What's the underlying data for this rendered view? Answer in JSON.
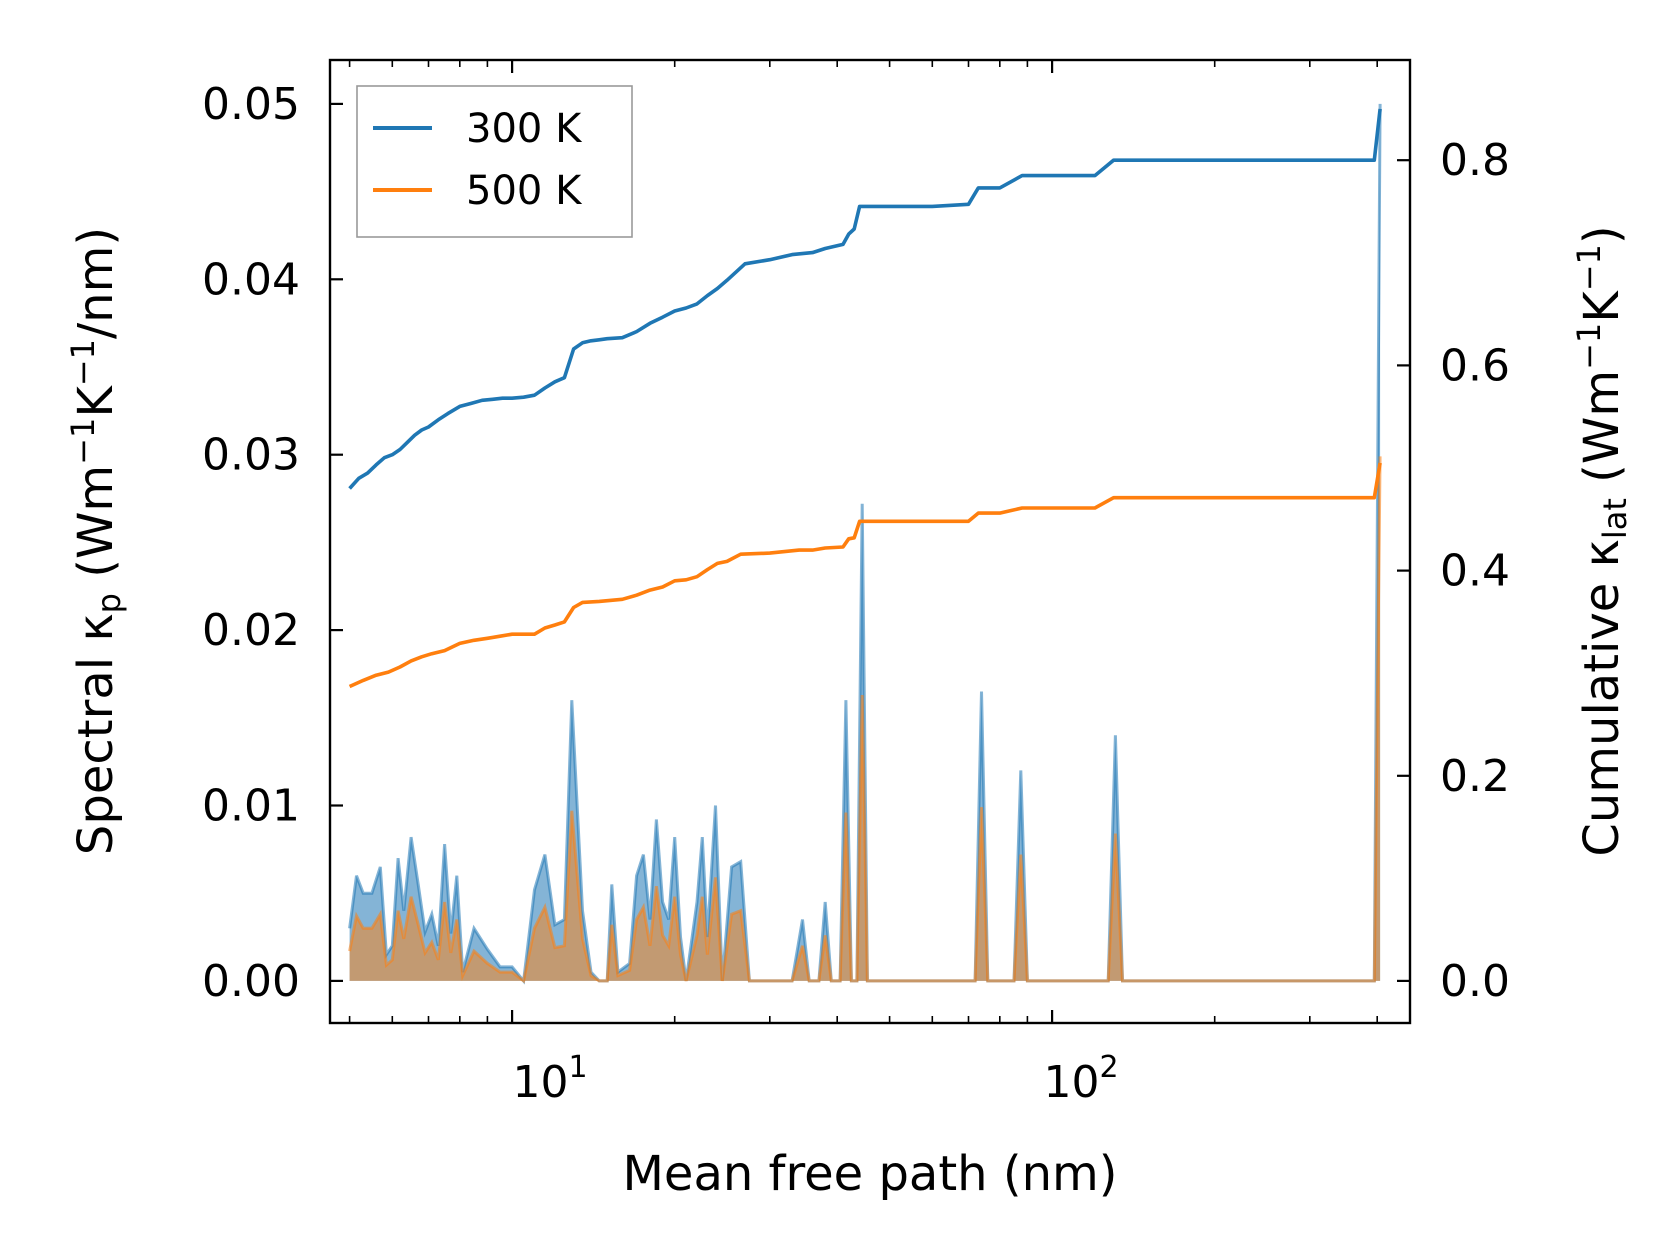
{
  "chart_data": {
    "type": "line",
    "xscale": "log",
    "xlabel": "Mean free path (nm)",
    "xlim": [
      4.6,
      460
    ],
    "xticks": [
      {
        "value": 10,
        "base": "10",
        "exp": "1"
      },
      {
        "value": 100,
        "base": "10",
        "exp": "2"
      }
    ],
    "y_left": {
      "label": {
        "main": "Spectral κ",
        "sub": "p",
        "units_pre": " (Wm",
        "sup1": "−1",
        "mid": "K",
        "sup2": "−1",
        "units_post": "/nm)"
      },
      "ylim": [
        -0.0024,
        0.0525
      ],
      "ticks": [
        0.0,
        0.01,
        0.02,
        0.03,
        0.04,
        0.05
      ],
      "tick_labels": [
        "0.00",
        "0.01",
        "0.02",
        "0.03",
        "0.04",
        "0.05"
      ]
    },
    "y_right": {
      "label": {
        "main": "Cumulative κ",
        "sub": "lat",
        "units_pre": " (Wm",
        "sup1": "−1",
        "mid": "K",
        "sup2": "−1",
        "units_post": ")"
      },
      "ylim": [
        -0.041,
        0.8977
      ],
      "ticks": [
        0.0,
        0.2,
        0.4,
        0.6,
        0.8
      ],
      "tick_labels": [
        "0.0",
        "0.2",
        "0.4",
        "0.6",
        "0.8"
      ]
    },
    "legend": {
      "position": "top-left",
      "entries": [
        {
          "label": "300 K",
          "color": "#1f77b4"
        },
        {
          "label": "500 K",
          "color": "#ff7f0e"
        }
      ]
    },
    "series": [
      {
        "name": "300 K",
        "color": "#1f77b4",
        "cumulative": [
          [
            5,
            0.48
          ],
          [
            5.2,
            0.49
          ],
          [
            5.4,
            0.495
          ],
          [
            5.6,
            0.503
          ],
          [
            5.8,
            0.51
          ],
          [
            6.0,
            0.513
          ],
          [
            6.2,
            0.518
          ],
          [
            6.4,
            0.525
          ],
          [
            6.6,
            0.532
          ],
          [
            6.8,
            0.537
          ],
          [
            7.0,
            0.54
          ],
          [
            7.3,
            0.547
          ],
          [
            7.6,
            0.553
          ],
          [
            8.0,
            0.56
          ],
          [
            8.4,
            0.563
          ],
          [
            8.8,
            0.566
          ],
          [
            9.2,
            0.567
          ],
          [
            9.6,
            0.568
          ],
          [
            10.0,
            0.568
          ],
          [
            10.5,
            0.569
          ],
          [
            11.0,
            0.571
          ],
          [
            11.5,
            0.578
          ],
          [
            12.0,
            0.584
          ],
          [
            12.5,
            0.588
          ],
          [
            13.0,
            0.616
          ],
          [
            13.5,
            0.622
          ],
          [
            14.0,
            0.624
          ],
          [
            14.5,
            0.625
          ],
          [
            15.0,
            0.626
          ],
          [
            16.0,
            0.627
          ],
          [
            17.0,
            0.633
          ],
          [
            18.0,
            0.641
          ],
          [
            19.0,
            0.647
          ],
          [
            20.0,
            0.653
          ],
          [
            21.0,
            0.656
          ],
          [
            22.0,
            0.66
          ],
          [
            23.0,
            0.668
          ],
          [
            24.0,
            0.675
          ],
          [
            25.0,
            0.683
          ],
          [
            27.0,
            0.699
          ],
          [
            30.0,
            0.703
          ],
          [
            33.0,
            0.708
          ],
          [
            36.0,
            0.71
          ],
          [
            38.0,
            0.714
          ],
          [
            41.0,
            0.718
          ],
          [
            42.0,
            0.728
          ],
          [
            43.0,
            0.733
          ],
          [
            44.0,
            0.755
          ],
          [
            50.0,
            0.755
          ],
          [
            60.0,
            0.755
          ],
          [
            70.0,
            0.757
          ],
          [
            73.0,
            0.773
          ],
          [
            80.0,
            0.773
          ],
          [
            88.0,
            0.785
          ],
          [
            100.0,
            0.785
          ],
          [
            120.0,
            0.785
          ],
          [
            130.0,
            0.8
          ],
          [
            150.0,
            0.8
          ],
          [
            200.0,
            0.8
          ],
          [
            300.0,
            0.8
          ],
          [
            395.0,
            0.8
          ],
          [
            405.0,
            0.85
          ]
        ],
        "spectral": [
          [
            5,
            0.003
          ],
          [
            5.15,
            0.006
          ],
          [
            5.3,
            0.005
          ],
          [
            5.5,
            0.005
          ],
          [
            5.7,
            0.0065
          ],
          [
            5.85,
            0.0015
          ],
          [
            6.0,
            0.002
          ],
          [
            6.15,
            0.007
          ],
          [
            6.3,
            0.004
          ],
          [
            6.5,
            0.0082
          ],
          [
            6.7,
            0.0055
          ],
          [
            6.9,
            0.0028
          ],
          [
            7.1,
            0.0038
          ],
          [
            7.3,
            0.002
          ],
          [
            7.5,
            0.0078
          ],
          [
            7.7,
            0.0027
          ],
          [
            7.9,
            0.006
          ],
          [
            8.1,
            0.0005
          ],
          [
            8.5,
            0.003
          ],
          [
            9.0,
            0.0018
          ],
          [
            9.5,
            0.0008
          ],
          [
            10.0,
            0.0008
          ],
          [
            10.5,
            0.0
          ],
          [
            11.0,
            0.0052
          ],
          [
            11.5,
            0.0072
          ],
          [
            12.0,
            0.0032
          ],
          [
            12.5,
            0.0035
          ],
          [
            12.9,
            0.016
          ],
          [
            13.5,
            0.004
          ],
          [
            14.0,
            0.0005
          ],
          [
            14.5,
            0.0
          ],
          [
            15.0,
            0.0
          ],
          [
            15.3,
            0.0055
          ],
          [
            15.7,
            0.0005
          ],
          [
            16.5,
            0.001
          ],
          [
            17.0,
            0.006
          ],
          [
            17.5,
            0.0072
          ],
          [
            18.0,
            0.0035
          ],
          [
            18.5,
            0.0092
          ],
          [
            19.0,
            0.0045
          ],
          [
            19.5,
            0.0035
          ],
          [
            20.0,
            0.0082
          ],
          [
            20.5,
            0.0025
          ],
          [
            21.0,
            0.0
          ],
          [
            22.0,
            0.0045
          ],
          [
            22.5,
            0.0082
          ],
          [
            23.0,
            0.0025
          ],
          [
            23.8,
            0.01
          ],
          [
            24.5,
            0.0
          ],
          [
            25.5,
            0.0065
          ],
          [
            26.5,
            0.0068
          ],
          [
            27.5,
            0.0
          ],
          [
            30.0,
            0.0
          ],
          [
            33.0,
            0.0
          ],
          [
            34.5,
            0.0035
          ],
          [
            35.5,
            0.0
          ],
          [
            37.0,
            0.0
          ],
          [
            38.0,
            0.0045
          ],
          [
            39.0,
            0.0
          ],
          [
            40.5,
            0.0
          ],
          [
            41.5,
            0.016
          ],
          [
            42.5,
            0.0
          ],
          [
            43.5,
            0.0
          ],
          [
            44.5,
            0.0272
          ],
          [
            45.5,
            0.0
          ],
          [
            50.0,
            0.0
          ],
          [
            60.0,
            0.0
          ],
          [
            70.0,
            0.0
          ],
          [
            72.0,
            0.0
          ],
          [
            74.0,
            0.0165
          ],
          [
            76.0,
            0.0
          ],
          [
            85.0,
            0.0
          ],
          [
            87.5,
            0.012
          ],
          [
            90.0,
            0.0
          ],
          [
            120.0,
            0.0
          ],
          [
            127.0,
            0.0
          ],
          [
            131.0,
            0.014
          ],
          [
            135.0,
            0.0
          ],
          [
            200.0,
            0.0
          ],
          [
            300.0,
            0.0
          ],
          [
            395.0,
            0.0
          ],
          [
            405.0,
            0.05
          ]
        ]
      },
      {
        "name": "500 K",
        "color": "#ff7f0e",
        "cumulative": [
          [
            5,
            0.287
          ],
          [
            5.3,
            0.293
          ],
          [
            5.6,
            0.298
          ],
          [
            5.9,
            0.301
          ],
          [
            6.2,
            0.306
          ],
          [
            6.5,
            0.312
          ],
          [
            6.8,
            0.316
          ],
          [
            7.1,
            0.319
          ],
          [
            7.5,
            0.322
          ],
          [
            8.0,
            0.329
          ],
          [
            8.5,
            0.332
          ],
          [
            9.0,
            0.334
          ],
          [
            9.5,
            0.336
          ],
          [
            10.0,
            0.338
          ],
          [
            10.5,
            0.338
          ],
          [
            11.0,
            0.338
          ],
          [
            11.5,
            0.344
          ],
          [
            12.0,
            0.347
          ],
          [
            12.5,
            0.35
          ],
          [
            13.0,
            0.364
          ],
          [
            13.5,
            0.369
          ],
          [
            14.5,
            0.37
          ],
          [
            16.0,
            0.372
          ],
          [
            17.0,
            0.376
          ],
          [
            18.0,
            0.381
          ],
          [
            19.0,
            0.384
          ],
          [
            20.0,
            0.39
          ],
          [
            21.0,
            0.391
          ],
          [
            22.0,
            0.394
          ],
          [
            23.0,
            0.401
          ],
          [
            24.0,
            0.407
          ],
          [
            25.0,
            0.409
          ],
          [
            26.5,
            0.416
          ],
          [
            30.0,
            0.417
          ],
          [
            34.0,
            0.42
          ],
          [
            36.0,
            0.42
          ],
          [
            38.0,
            0.422
          ],
          [
            41.0,
            0.423
          ],
          [
            42.0,
            0.431
          ],
          [
            43.0,
            0.432
          ],
          [
            44.0,
            0.448
          ],
          [
            50.0,
            0.448
          ],
          [
            60.0,
            0.448
          ],
          [
            70.0,
            0.448
          ],
          [
            73.0,
            0.456
          ],
          [
            80.0,
            0.456
          ],
          [
            88.0,
            0.461
          ],
          [
            100.0,
            0.461
          ],
          [
            120.0,
            0.461
          ],
          [
            130.0,
            0.471
          ],
          [
            150.0,
            0.471
          ],
          [
            200.0,
            0.471
          ],
          [
            300.0,
            0.471
          ],
          [
            395.0,
            0.471
          ],
          [
            405.0,
            0.505
          ]
        ],
        "spectral": [
          [
            5,
            0.0017
          ],
          [
            5.15,
            0.0037
          ],
          [
            5.3,
            0.003
          ],
          [
            5.5,
            0.003
          ],
          [
            5.7,
            0.0038
          ],
          [
            5.85,
            0.0009
          ],
          [
            6.0,
            0.0012
          ],
          [
            6.15,
            0.004
          ],
          [
            6.3,
            0.0024
          ],
          [
            6.5,
            0.0048
          ],
          [
            6.7,
            0.0032
          ],
          [
            6.9,
            0.0016
          ],
          [
            7.1,
            0.0022
          ],
          [
            7.3,
            0.0012
          ],
          [
            7.5,
            0.0045
          ],
          [
            7.7,
            0.0016
          ],
          [
            7.9,
            0.0035
          ],
          [
            8.1,
            0.0003
          ],
          [
            8.5,
            0.0017
          ],
          [
            9.0,
            0.001
          ],
          [
            9.5,
            0.0005
          ],
          [
            10.0,
            0.0005
          ],
          [
            10.5,
            0.0
          ],
          [
            11.0,
            0.003
          ],
          [
            11.5,
            0.0042
          ],
          [
            12.0,
            0.0019
          ],
          [
            12.5,
            0.002
          ],
          [
            12.9,
            0.0097
          ],
          [
            13.5,
            0.0024
          ],
          [
            14.0,
            0.0003
          ],
          [
            14.5,
            0.0
          ],
          [
            15.0,
            0.0
          ],
          [
            15.3,
            0.0032
          ],
          [
            15.7,
            0.0003
          ],
          [
            16.5,
            0.0006
          ],
          [
            17.0,
            0.0035
          ],
          [
            17.5,
            0.0042
          ],
          [
            18.0,
            0.002
          ],
          [
            18.5,
            0.0054
          ],
          [
            19.0,
            0.0026
          ],
          [
            19.5,
            0.002
          ],
          [
            20.0,
            0.0048
          ],
          [
            20.5,
            0.0015
          ],
          [
            21.0,
            0.0
          ],
          [
            22.0,
            0.0026
          ],
          [
            22.5,
            0.0048
          ],
          [
            23.0,
            0.0015
          ],
          [
            23.8,
            0.0059
          ],
          [
            24.5,
            0.0
          ],
          [
            25.5,
            0.0038
          ],
          [
            26.5,
            0.004
          ],
          [
            27.5,
            0.0
          ],
          [
            30.0,
            0.0
          ],
          [
            33.0,
            0.0
          ],
          [
            34.5,
            0.002
          ],
          [
            35.5,
            0.0
          ],
          [
            37.0,
            0.0
          ],
          [
            38.0,
            0.0026
          ],
          [
            39.0,
            0.0
          ],
          [
            40.5,
            0.0
          ],
          [
            41.5,
            0.0096
          ],
          [
            42.5,
            0.0
          ],
          [
            43.5,
            0.0
          ],
          [
            44.5,
            0.0163
          ],
          [
            45.5,
            0.0
          ],
          [
            50.0,
            0.0
          ],
          [
            60.0,
            0.0
          ],
          [
            70.0,
            0.0
          ],
          [
            72.0,
            0.0
          ],
          [
            74.0,
            0.0099
          ],
          [
            76.0,
            0.0
          ],
          [
            85.0,
            0.0
          ],
          [
            87.5,
            0.0072
          ],
          [
            90.0,
            0.0
          ],
          [
            120.0,
            0.0
          ],
          [
            127.0,
            0.0
          ],
          [
            131.0,
            0.0084
          ],
          [
            135.0,
            0.0
          ],
          [
            200.0,
            0.0
          ],
          [
            300.0,
            0.0
          ],
          [
            395.0,
            0.0
          ],
          [
            405.0,
            0.0299
          ]
        ]
      }
    ]
  }
}
